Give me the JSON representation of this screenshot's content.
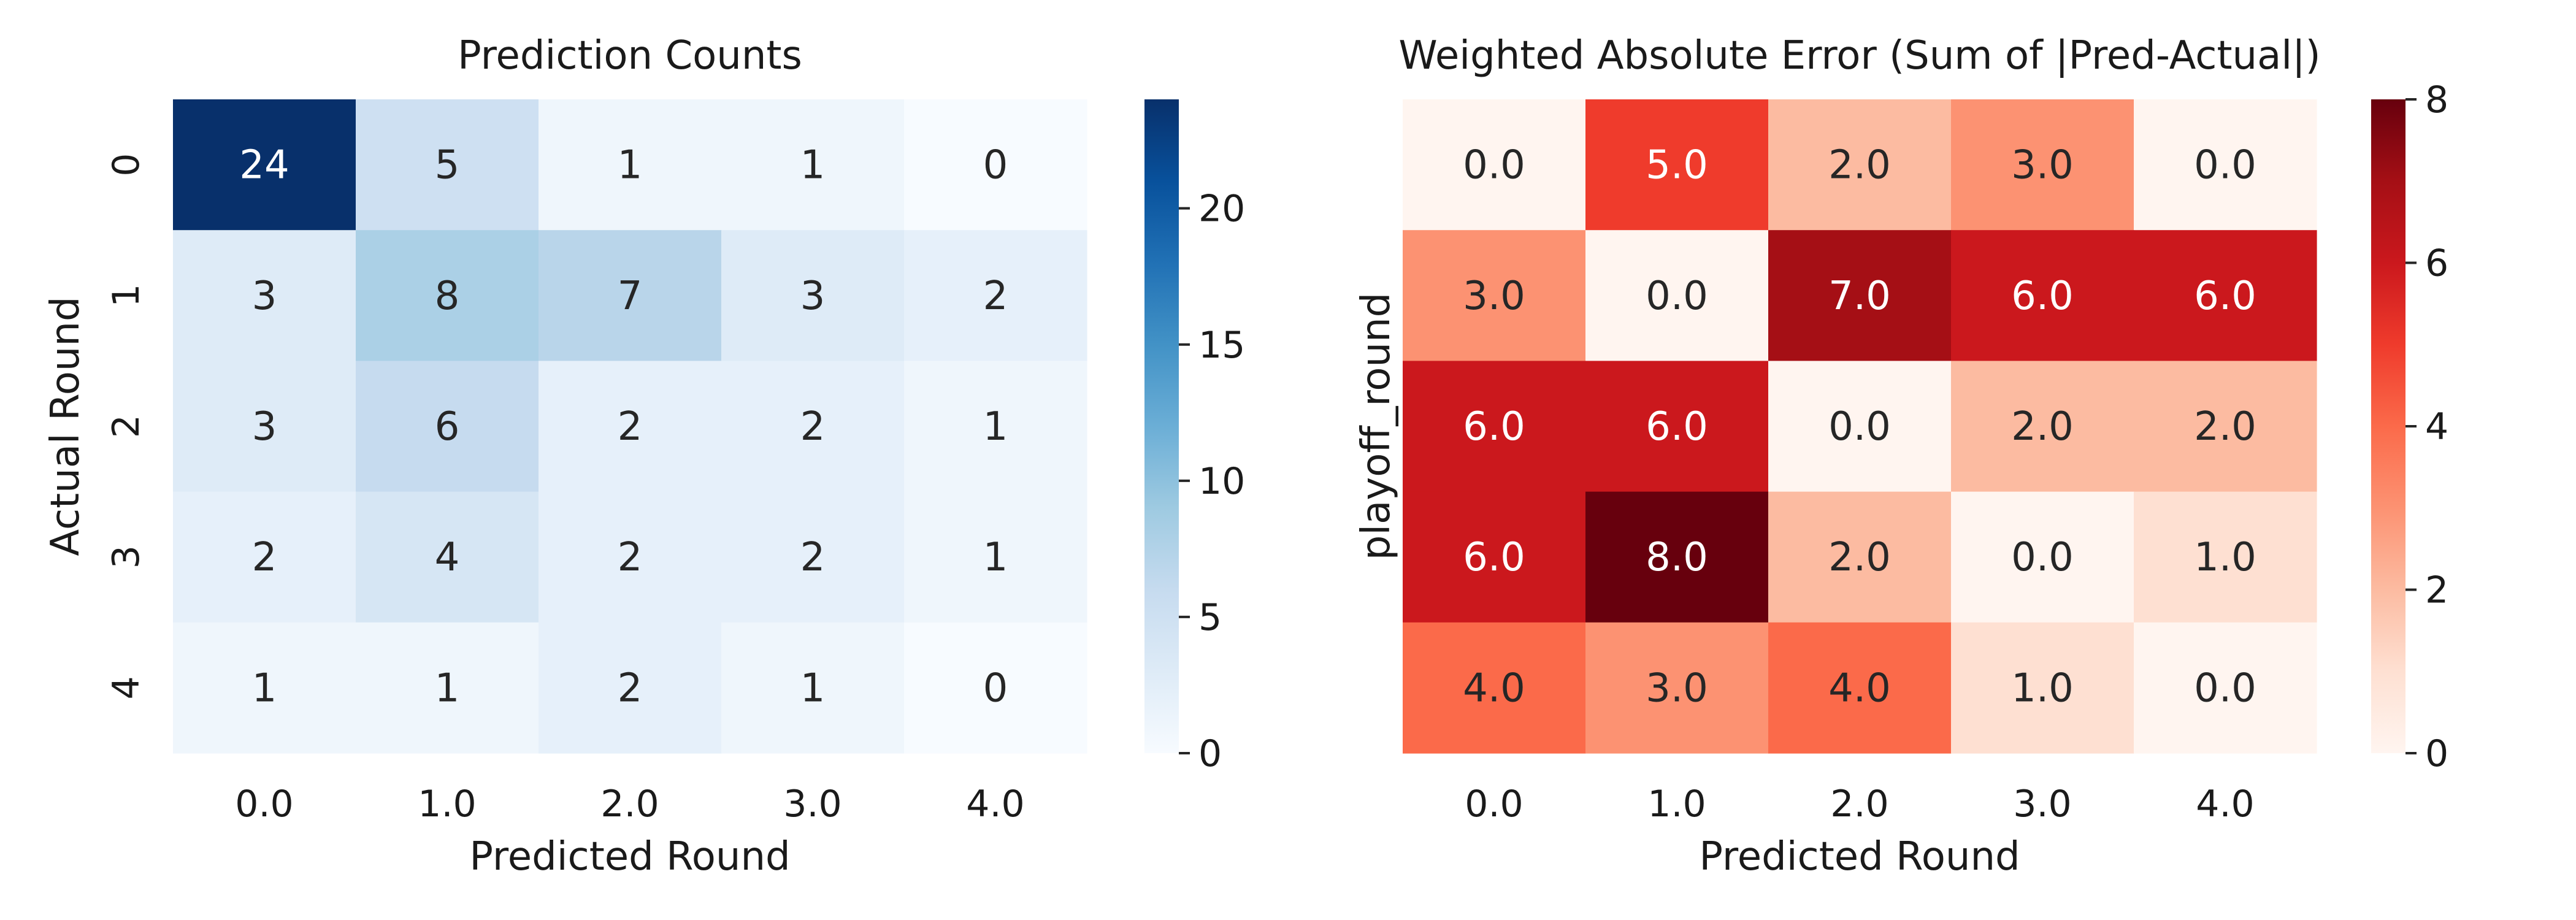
{
  "chart_data": [
    {
      "type": "heatmap",
      "title": "Prediction Counts",
      "xlabel": "Predicted Round",
      "ylabel": "Actual Round",
      "x_tick_labels": [
        "0.0",
        "1.0",
        "2.0",
        "3.0",
        "4.0"
      ],
      "y_tick_labels": [
        "0",
        "1",
        "2",
        "3",
        "4"
      ],
      "cell_labels": [
        [
          "24",
          "5",
          "1",
          "1",
          "0"
        ],
        [
          "3",
          "8",
          "7",
          "3",
          "2"
        ],
        [
          "3",
          "6",
          "2",
          "2",
          "1"
        ],
        [
          "2",
          "4",
          "2",
          "2",
          "1"
        ],
        [
          "1",
          "1",
          "2",
          "1",
          "0"
        ]
      ],
      "values": [
        [
          24,
          5,
          1,
          1,
          0
        ],
        [
          3,
          8,
          7,
          3,
          2
        ],
        [
          3,
          6,
          2,
          2,
          1
        ],
        [
          2,
          4,
          2,
          2,
          1
        ],
        [
          1,
          1,
          2,
          1,
          0
        ]
      ],
      "colormap": "Blues",
      "colormap_stops": [
        "#f7fbff",
        "#deebf7",
        "#c6dbef",
        "#9ecae1",
        "#6baed6",
        "#4292c6",
        "#2171b5",
        "#08519c",
        "#08306b"
      ],
      "vmin": 0,
      "vmax": 24,
      "colorbar_ticks": [
        0,
        5,
        10,
        15,
        20
      ],
      "colorbar_tick_labels": [
        "0",
        "5",
        "10",
        "15",
        "20"
      ],
      "grid": false
    },
    {
      "type": "heatmap",
      "title": "Weighted Absolute Error (Sum of |Pred-Actual|)",
      "xlabel": "Predicted Round",
      "ylabel": "playoff_round",
      "x_tick_labels": [
        "0.0",
        "1.0",
        "2.0",
        "3.0",
        "4.0"
      ],
      "y_tick_labels": [],
      "cell_labels": [
        [
          "0.0",
          "5.0",
          "2.0",
          "3.0",
          "0.0"
        ],
        [
          "3.0",
          "0.0",
          "7.0",
          "6.0",
          "6.0"
        ],
        [
          "6.0",
          "6.0",
          "0.0",
          "2.0",
          "2.0"
        ],
        [
          "6.0",
          "8.0",
          "2.0",
          "0.0",
          "1.0"
        ],
        [
          "4.0",
          "3.0",
          "4.0",
          "1.0",
          "0.0"
        ]
      ],
      "values": [
        [
          0,
          5,
          2,
          3,
          0
        ],
        [
          3,
          0,
          7,
          6,
          6
        ],
        [
          6,
          6,
          0,
          2,
          2
        ],
        [
          6,
          8,
          2,
          0,
          1
        ],
        [
          4,
          3,
          4,
          1,
          0
        ]
      ],
      "colormap": "Reds",
      "colormap_stops": [
        "#fff5f0",
        "#fee0d2",
        "#fcbba1",
        "#fc9272",
        "#fb6a4a",
        "#ef3b2c",
        "#cb181d",
        "#a50f15",
        "#67000d"
      ],
      "vmin": 0,
      "vmax": 8,
      "colorbar_ticks": [
        0,
        2,
        4,
        6,
        8
      ],
      "colorbar_tick_labels": [
        "0",
        "2",
        "4",
        "6",
        "8"
      ],
      "grid": false
    }
  ]
}
